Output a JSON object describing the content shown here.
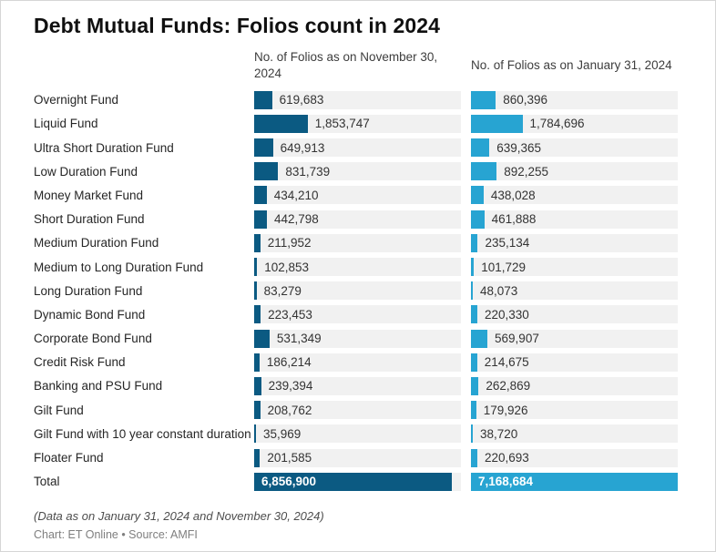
{
  "title": "Debt Mutual Funds: Folios count in 2024",
  "columns": {
    "nov": "No. of Folios as on November 30, 2024",
    "jan": "No. of Folios as on January 31, 2024"
  },
  "footnote": "(Data as on January 31, 2024 and November 30, 2024)",
  "credit": "Chart: ET Online • Source: AMFI",
  "colors": {
    "nov_bar": "#0b5a82",
    "jan_bar": "#27a4d2",
    "track": "#f1f1f1"
  },
  "chart_data": {
    "type": "bar",
    "orientation": "horizontal",
    "title": "Debt Mutual Funds: Folios count in 2024",
    "xlim": [
      0,
      7168684
    ],
    "grid": false,
    "legend_position": "column-headers",
    "value_format": "comma-thousands",
    "categories": [
      "Overnight Fund",
      "Liquid Fund",
      "Ultra Short Duration Fund",
      "Low Duration Fund",
      "Money Market Fund",
      "Short Duration Fund",
      "Medium Duration Fund",
      "Medium to Long Duration Fund",
      "Long Duration Fund",
      "Dynamic Bond Fund",
      "Corporate Bond Fund",
      "Credit Risk Fund",
      "Banking and PSU Fund",
      "Gilt Fund",
      "Gilt Fund with 10 year constant duration",
      "Floater Fund",
      "Total"
    ],
    "series": [
      {
        "name": "No. of Folios as on November 30, 2024",
        "values": [
          619683,
          1853747,
          649913,
          831739,
          434210,
          442798,
          211952,
          102853,
          83279,
          223453,
          531349,
          186214,
          239394,
          208762,
          35969,
          201585,
          6856900
        ]
      },
      {
        "name": "No. of Folios as on January 31, 2024",
        "values": [
          860396,
          1784696,
          639365,
          892255,
          438028,
          461888,
          235134,
          101729,
          48073,
          220330,
          569907,
          214675,
          262869,
          179926,
          38720,
          220693,
          7168684
        ]
      }
    ]
  }
}
